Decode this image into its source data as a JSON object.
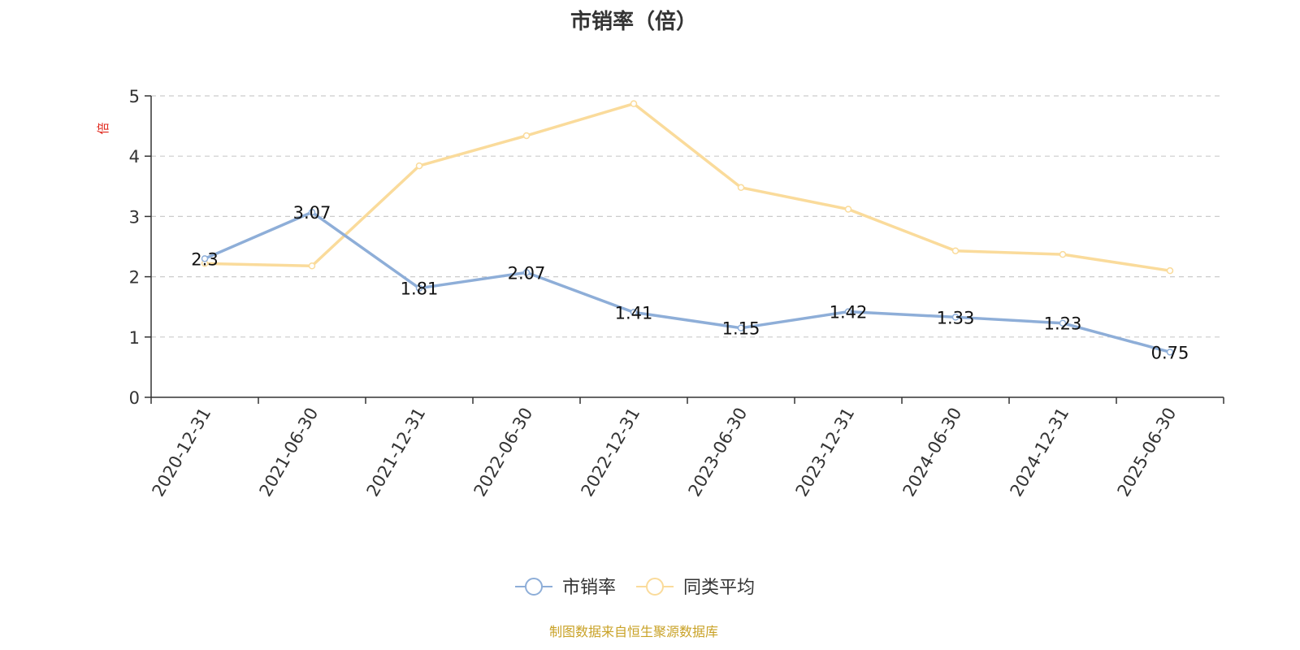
{
  "chart_data": {
    "type": "line",
    "title": "市销率（倍）",
    "ylabel": "倍",
    "xlabel": "",
    "ylim": [
      0,
      5
    ],
    "yticks": [
      0,
      1,
      2,
      3,
      4,
      5
    ],
    "grid": true,
    "legend_position": "bottom-center",
    "categories": [
      "2020-12-31",
      "2021-06-30",
      "2021-12-31",
      "2022-06-30",
      "2022-12-31",
      "2023-06-30",
      "2023-12-31",
      "2024-06-30",
      "2024-12-31",
      "2025-06-30"
    ],
    "series": [
      {
        "name": "市销率",
        "color": "#8eaed8",
        "values": [
          2.3,
          3.07,
          1.81,
          2.07,
          1.41,
          1.15,
          1.42,
          1.33,
          1.23,
          0.75
        ],
        "show_labels": true
      },
      {
        "name": "同类平均",
        "color": "#fadb9b",
        "values": [
          2.22,
          2.18,
          3.84,
          4.34,
          4.87,
          3.48,
          3.12,
          2.43,
          2.37,
          2.1
        ],
        "show_labels": false
      }
    ]
  },
  "source_note": "制图数据来自恒生聚源数据库"
}
